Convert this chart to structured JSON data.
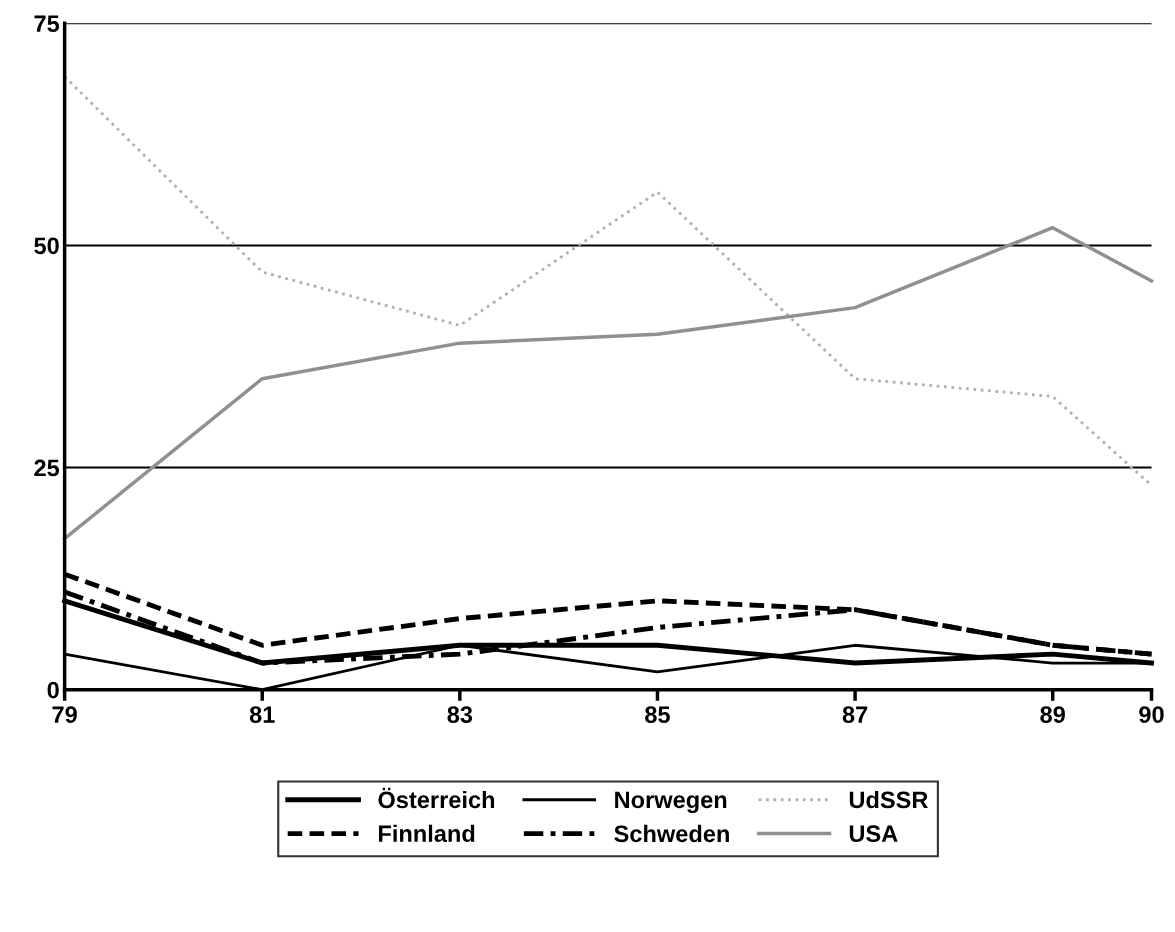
{
  "chart_data": {
    "type": "line",
    "x": [
      79,
      81,
      83,
      85,
      87,
      89,
      90
    ],
    "xlim": [
      79,
      90
    ],
    "xticks": [
      79,
      81,
      83,
      85,
      87,
      89,
      90
    ],
    "ylim": [
      0,
      75
    ],
    "yticks": [
      0,
      25,
      50,
      75
    ],
    "grid": "y",
    "legend": "bottom",
    "series": [
      {
        "name": "Österreich",
        "color": "#000000",
        "line_style": "solid",
        "values": [
          10,
          3,
          5,
          5,
          3,
          4,
          3
        ]
      },
      {
        "name": "Norwegen",
        "color": "#000000",
        "line_style": "solid",
        "values": [
          4,
          0,
          5,
          2,
          5,
          3,
          3
        ]
      },
      {
        "name": "UdSSR",
        "color": "#b0b0b0",
        "line_style": "dotted",
        "values": [
          69,
          47,
          41,
          56,
          35,
          33,
          23
        ]
      },
      {
        "name": "Finnland",
        "color": "#000000",
        "line_style": "dashed",
        "values": [
          13,
          5,
          8,
          10,
          9,
          5,
          4
        ]
      },
      {
        "name": "Schweden",
        "color": "#000000",
        "line_style": "dashdot",
        "values": [
          11,
          3,
          4,
          7,
          9,
          5,
          4
        ]
      },
      {
        "name": "USA",
        "color": "#909090",
        "line_style": "solid",
        "values": [
          17,
          35,
          39,
          40,
          43,
          52,
          46
        ]
      }
    ]
  }
}
